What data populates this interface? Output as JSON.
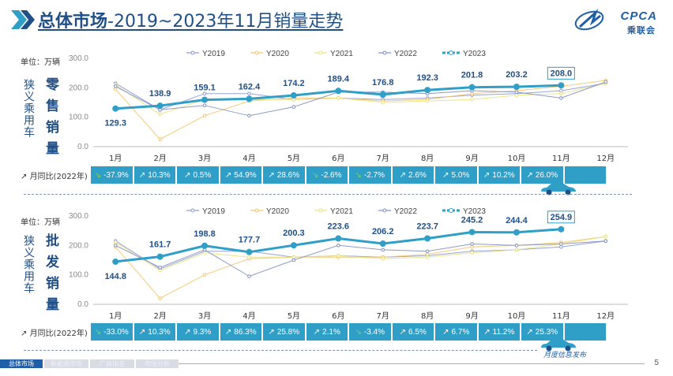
{
  "header": {
    "title_bold": "总体市场",
    "title_rest": "-2019~2023年11月销量走势"
  },
  "logo": {
    "text": "CPCA",
    "sub": "乘联会",
    "colors": {
      "blue": "#1f5fa8"
    }
  },
  "colors": {
    "y2019": "#8b99d6",
    "y2020": "#f5c46a",
    "y2021": "#e9e27a",
    "y2022": "#8090c0",
    "y2023": "#2f9fc8",
    "yoy_bg": "#2f9fc8",
    "title": "#1f4f86"
  },
  "unit_label": "单位：万辆",
  "months": [
    "1月",
    "2月",
    "3月",
    "4月",
    "5月",
    "6月",
    "7月",
    "8月",
    "9月",
    "10月",
    "11月",
    "12月"
  ],
  "yoy_label": "月同比(2022年)",
  "chart_data": [
    {
      "type": "line",
      "side_label_small": "狭义乘用车",
      "side_label_big": "零售销量",
      "ylim": [
        0,
        300
      ],
      "yticks": [
        "0.0",
        "100.0",
        "200.0",
        "300.0"
      ],
      "legend": [
        "Y2019",
        "Y2020",
        "Y2021",
        "Y2022",
        "Y2023"
      ],
      "series": [
        {
          "name": "Y2019",
          "values": [
            215,
            125,
            180,
            180,
            160,
            165,
            160,
            165,
            175,
            180,
            190,
            215
          ]
        },
        {
          "name": "Y2020",
          "values": [
            195,
            25,
            105,
            155,
            165,
            165,
            155,
            160,
            180,
            190,
            205,
            225
          ]
        },
        {
          "name": "Y2021",
          "values": [
            210,
            110,
            160,
            160,
            160,
            165,
            150,
            155,
            160,
            175,
            180,
            215
          ]
        },
        {
          "name": "Y2022",
          "values": [
            205,
            125,
            140,
            105,
            135,
            185,
            185,
            180,
            190,
            185,
            165,
            220
          ]
        },
        {
          "name": "Y2023",
          "values": [
            129.3,
            138.9,
            159.1,
            162.4,
            174.2,
            189.4,
            176.8,
            192.3,
            201.8,
            203.2,
            208.0,
            null
          ]
        }
      ],
      "data_labels": [
        "129.3",
        "138.9",
        "159.1",
        "162.4",
        "174.2",
        "189.4",
        "176.8",
        "192.3",
        "201.8",
        "203.2",
        "208.0"
      ],
      "yoy": [
        {
          "text": "-37.9%",
          "dir": "down"
        },
        {
          "text": "10.3%",
          "dir": "up"
        },
        {
          "text": "0.5%",
          "dir": "up"
        },
        {
          "text": "54.9%",
          "dir": "up"
        },
        {
          "text": "28.6%",
          "dir": "up"
        },
        {
          "text": "-2.6%",
          "dir": "down"
        },
        {
          "text": "-2.7%",
          "dir": "down"
        },
        {
          "text": "2.6%",
          "dir": "up"
        },
        {
          "text": "5.0%",
          "dir": "up"
        },
        {
          "text": "10.2%",
          "dir": "up"
        },
        {
          "text": "26.0%",
          "dir": "up"
        },
        {
          "text": "",
          "dir": "none"
        }
      ]
    },
    {
      "type": "line",
      "side_label_small": "狭义乘用车",
      "side_label_big": "批发销量",
      "ylim": [
        0,
        300
      ],
      "yticks": [
        "0.0",
        "100.0",
        "200.0",
        "300.0"
      ],
      "legend": [
        "Y2019",
        "Y2020",
        "Y2021",
        "Y2022",
        "Y2023"
      ],
      "series": [
        {
          "name": "Y2019",
          "values": [
            215,
            120,
            180,
            180,
            160,
            165,
            160,
            165,
            180,
            185,
            195,
            215
          ]
        },
        {
          "name": "Y2020",
          "values": [
            195,
            20,
            100,
            155,
            160,
            160,
            160,
            170,
            195,
            200,
            210,
            230
          ]
        },
        {
          "name": "Y2021",
          "values": [
            210,
            115,
            175,
            160,
            160,
            165,
            155,
            160,
            175,
            185,
            205,
            230
          ]
        },
        {
          "name": "Y2022",
          "values": [
            200,
            125,
            185,
            95,
            150,
            200,
            185,
            180,
            205,
            200,
            205,
            215
          ]
        },
        {
          "name": "Y2023",
          "values": [
            144.8,
            161.7,
            198.8,
            177.7,
            200.3,
            223.6,
            206.2,
            223.7,
            245.2,
            244.4,
            254.9,
            null
          ]
        }
      ],
      "data_labels": [
        "144.8",
        "161.7",
        "198.8",
        "177.7",
        "200.3",
        "223.6",
        "206.2",
        "223.7",
        "245.2",
        "244.4",
        "254.9"
      ],
      "yoy": [
        {
          "text": "-33.0%",
          "dir": "down"
        },
        {
          "text": "10.3%",
          "dir": "up"
        },
        {
          "text": "9.3%",
          "dir": "up"
        },
        {
          "text": "86.3%",
          "dir": "up"
        },
        {
          "text": "25.8%",
          "dir": "up"
        },
        {
          "text": "2.1%",
          "dir": "up"
        },
        {
          "text": "-3.4%",
          "dir": "down"
        },
        {
          "text": "6.5%",
          "dir": "up"
        },
        {
          "text": "6.7%",
          "dir": "up"
        },
        {
          "text": "11.2%",
          "dir": "up"
        },
        {
          "text": "25.3%",
          "dir": "up"
        },
        {
          "text": "",
          "dir": "none"
        }
      ]
    }
  ],
  "footer": {
    "tabs": [
      "总体市场",
      "新能源市场",
      "厂商排名",
      "市场分析"
    ],
    "publisher": "月度信息发布",
    "page": "5"
  }
}
